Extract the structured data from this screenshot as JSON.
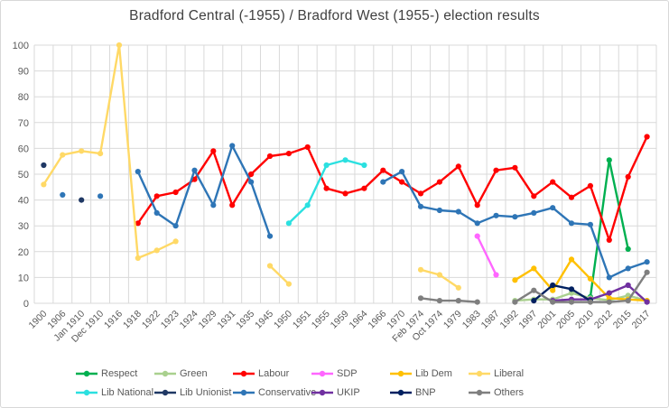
{
  "chart_data": {
    "type": "line",
    "title": "Bradford Central (-1955) / Bradford West (1955-) election results",
    "xlabel": "",
    "ylabel": "",
    "ylim": [
      0,
      100
    ],
    "y_ticks": [
      0,
      10,
      20,
      30,
      40,
      50,
      60,
      70,
      80,
      90,
      100
    ],
    "grid": true,
    "legend_position": "bottom",
    "grid_color": "#d9d9d9",
    "axis_text_color": "#595959",
    "categories": [
      "1900",
      "1906",
      "Jan 1910",
      "Dec 1910",
      "1916",
      "1918",
      "1922",
      "1923",
      "1924",
      "1929",
      "1931",
      "1935",
      "1945",
      "1950",
      "1951",
      "1955",
      "1959",
      "1964",
      "1966",
      "1970",
      "Feb 1974",
      "Oct 1974",
      "1979",
      "1983",
      "1987",
      "1992",
      "1997",
      "2001",
      "2005",
      "2010",
      "2012",
      "2015",
      "2017"
    ],
    "series": [
      {
        "name": "Respect",
        "color": "#00B050",
        "values": [
          null,
          null,
          null,
          null,
          null,
          null,
          null,
          null,
          null,
          null,
          null,
          null,
          null,
          null,
          null,
          null,
          null,
          null,
          null,
          null,
          null,
          null,
          null,
          null,
          null,
          null,
          null,
          null,
          null,
          2.5,
          55.5,
          21,
          null
        ]
      },
      {
        "name": "Green",
        "color": "#A9D08E",
        "values": [
          null,
          null,
          null,
          null,
          null,
          null,
          null,
          null,
          null,
          null,
          null,
          null,
          null,
          null,
          null,
          null,
          null,
          null,
          null,
          null,
          null,
          null,
          null,
          null,
          null,
          1,
          1.5,
          1.5,
          4,
          2,
          1.2,
          3,
          1
        ]
      },
      {
        "name": "Labour",
        "color": "#FF0000",
        "values": [
          null,
          null,
          null,
          null,
          null,
          31,
          41.5,
          43,
          48,
          59,
          38,
          50,
          57,
          58,
          60.5,
          44.5,
          42.5,
          44.5,
          51.5,
          47,
          42.5,
          47,
          53,
          38,
          51.5,
          52.5,
          41.5,
          47,
          41,
          45.5,
          24.5,
          49,
          64.5
        ]
      },
      {
        "name": "SDP",
        "color": "#FF66FF",
        "values": [
          null,
          null,
          null,
          null,
          null,
          null,
          null,
          null,
          null,
          null,
          null,
          null,
          null,
          null,
          null,
          null,
          null,
          null,
          null,
          null,
          null,
          null,
          null,
          26,
          11,
          null,
          null,
          null,
          null,
          null,
          null,
          null,
          null
        ]
      },
      {
        "name": "Lib Dem",
        "color": "#FFC000",
        "values": [
          null,
          null,
          null,
          null,
          null,
          null,
          null,
          null,
          null,
          null,
          null,
          null,
          null,
          null,
          null,
          null,
          null,
          null,
          null,
          null,
          null,
          null,
          null,
          null,
          null,
          9,
          13.5,
          5,
          17,
          9.5,
          2,
          1.5,
          1
        ]
      },
      {
        "name": "Liberal",
        "color": "#FFD966",
        "values": [
          46,
          57.5,
          59,
          58,
          100,
          17.5,
          20.5,
          24,
          null,
          null,
          null,
          null,
          14.5,
          7.5,
          null,
          null,
          null,
          null,
          null,
          null,
          13,
          11,
          6,
          null,
          null,
          null,
          null,
          null,
          null,
          null,
          null,
          null,
          null
        ]
      },
      {
        "name": "Lib National",
        "color": "#2BE0E0",
        "values": [
          null,
          null,
          null,
          null,
          null,
          null,
          null,
          null,
          null,
          null,
          null,
          null,
          null,
          31,
          38,
          53.5,
          55.5,
          53.5,
          null,
          null,
          null,
          null,
          null,
          null,
          null,
          null,
          null,
          null,
          null,
          null,
          null,
          null,
          null
        ]
      },
      {
        "name": "Lib Unionist",
        "color": "#1F3864",
        "values": [
          53.5,
          null,
          40,
          null,
          null,
          null,
          null,
          null,
          null,
          null,
          null,
          null,
          null,
          null,
          null,
          null,
          null,
          null,
          null,
          null,
          null,
          null,
          null,
          null,
          null,
          null,
          null,
          null,
          null,
          null,
          null,
          null,
          null
        ]
      },
      {
        "name": "Conservative",
        "color": "#2E75B6",
        "values": [
          null,
          42,
          null,
          41.5,
          null,
          51,
          35,
          30,
          51.5,
          38,
          61,
          47,
          26,
          null,
          null,
          null,
          null,
          null,
          47,
          51,
          37.5,
          36,
          35.5,
          31,
          34,
          33.5,
          35,
          37,
          31,
          30.5,
          10,
          13.5,
          16
        ]
      },
      {
        "name": "UKIP",
        "color": "#7030A0",
        "values": [
          null,
          null,
          null,
          null,
          null,
          null,
          null,
          null,
          null,
          null,
          null,
          null,
          null,
          null,
          null,
          null,
          null,
          null,
          null,
          null,
          null,
          null,
          null,
          null,
          null,
          null,
          null,
          1,
          1.5,
          1.5,
          4,
          7,
          0.5
        ]
      },
      {
        "name": "BNP",
        "color": "#002060",
        "values": [
          null,
          null,
          null,
          null,
          null,
          null,
          null,
          null,
          null,
          null,
          null,
          null,
          null,
          null,
          null,
          null,
          null,
          null,
          null,
          null,
          null,
          null,
          null,
          null,
          null,
          null,
          1,
          7,
          5.5,
          1,
          null,
          null,
          null
        ]
      },
      {
        "name": "Others",
        "color": "#7F7F7F",
        "values": [
          null,
          null,
          null,
          null,
          null,
          null,
          null,
          null,
          null,
          null,
          null,
          null,
          null,
          null,
          null,
          null,
          null,
          null,
          null,
          null,
          2,
          1,
          1,
          0.5,
          null,
          0.5,
          5,
          0.5,
          0.5,
          0.5,
          0.5,
          1,
          12
        ]
      }
    ]
  }
}
